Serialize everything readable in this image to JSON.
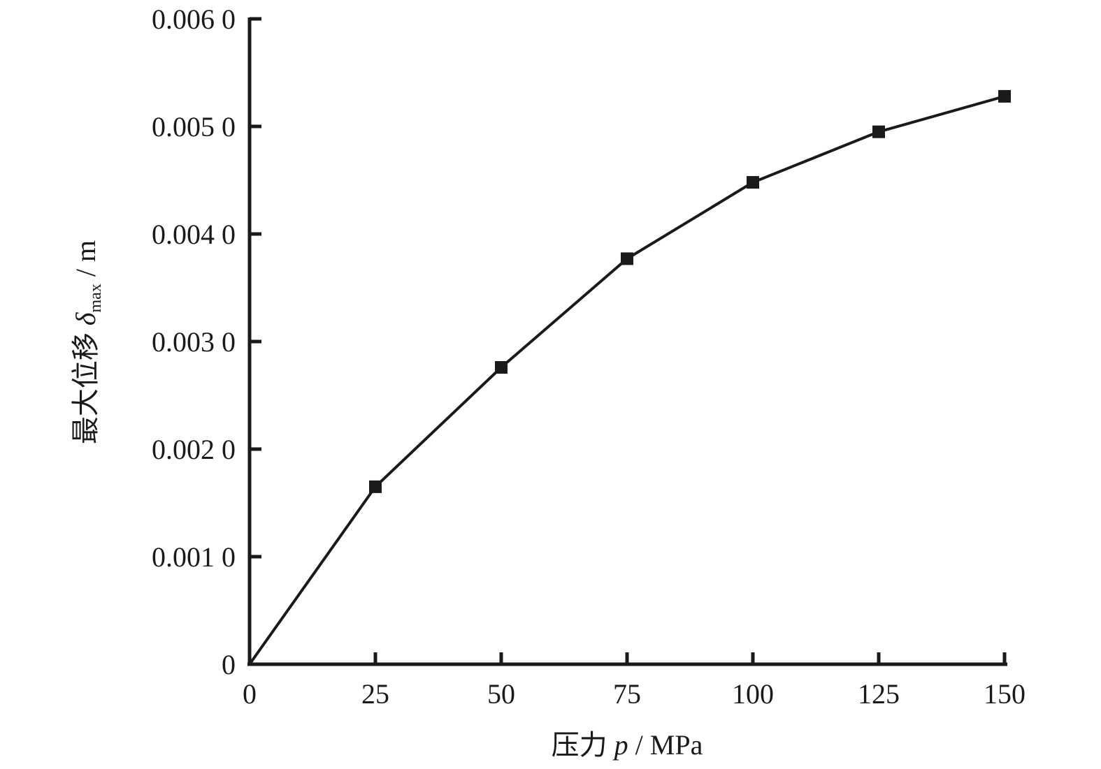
{
  "chart_data": {
    "type": "line",
    "x": [
      0,
      25,
      50,
      75,
      100,
      125,
      150
    ],
    "series": [
      {
        "values": [
          0.0,
          0.00165,
          0.00276,
          0.00377,
          0.00448,
          0.00495,
          0.00528
        ],
        "markers": [
          false,
          true,
          true,
          true,
          true,
          true,
          true
        ]
      }
    ],
    "xlim": [
      0,
      150
    ],
    "ylim": [
      0,
      0.006
    ],
    "xticks": [
      0,
      25,
      50,
      75,
      100,
      125,
      150
    ],
    "xtick_labels": [
      "0",
      "25",
      "50",
      "75",
      "100",
      "125",
      "150"
    ],
    "yticks": [
      0,
      0.001,
      0.002,
      0.003,
      0.004,
      0.005,
      0.006
    ],
    "ytick_labels": [
      "0",
      "0.001 0",
      "0.002 0",
      "0.003 0",
      "0.004 0",
      "0.005 0",
      "0.006 0"
    ],
    "xlabel": {
      "prefix": "压力 ",
      "symbol": "p",
      "suffix": " / MPa"
    },
    "ylabel": {
      "prefix": "最大位移 ",
      "symbol": "δ",
      "subscript": "max",
      "suffix": " / m"
    },
    "grid": false,
    "marker": "square",
    "colors": {
      "line": "#1a1a1a",
      "axis": "#1a1a1a",
      "background": "#ffffff"
    }
  }
}
